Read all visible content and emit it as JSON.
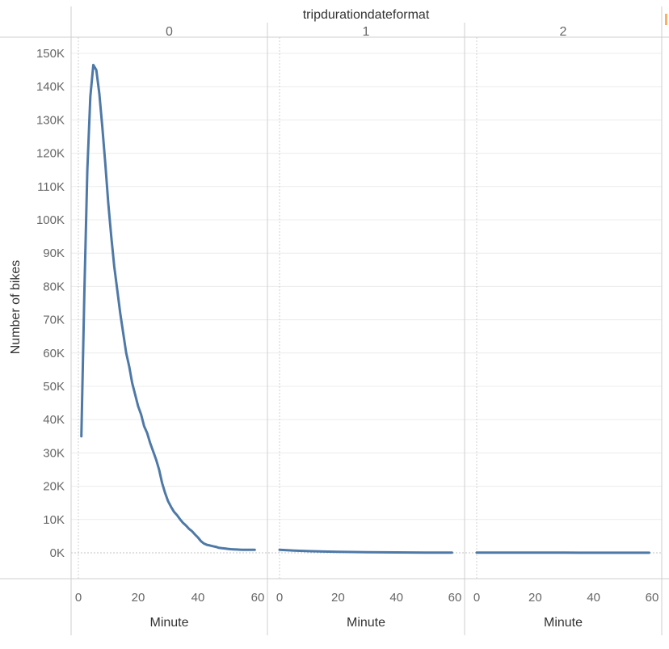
{
  "chart_data": {
    "type": "line",
    "column_header": "tripdurationdateformat",
    "ylabel": "Number of bikes",
    "xlabel": "Minute",
    "ylim": [
      0,
      152000
    ],
    "xlim": [
      0,
      60
    ],
    "y_ticks": [
      0,
      10000,
      20000,
      30000,
      40000,
      50000,
      60000,
      70000,
      80000,
      90000,
      100000,
      110000,
      120000,
      130000,
      140000,
      150000
    ],
    "y_tick_labels": [
      "0K",
      "10K",
      "20K",
      "30K",
      "40K",
      "50K",
      "60K",
      "70K",
      "80K",
      "90K",
      "100K",
      "110K",
      "120K",
      "130K",
      "140K",
      "150K"
    ],
    "x_ticks": [
      0,
      20,
      40,
      60
    ],
    "x_tick_labels": [
      "0",
      "20",
      "40",
      "60"
    ],
    "grid": true,
    "line_color": "#4e79a7",
    "panels": [
      {
        "label": "0",
        "x": [
          1,
          2,
          3,
          4,
          5,
          6,
          7,
          8,
          9,
          10,
          11,
          12,
          13,
          14,
          15,
          16,
          17,
          18,
          19,
          20,
          21,
          22,
          23,
          24,
          25,
          26,
          27,
          28,
          29,
          30,
          31,
          32,
          33,
          34,
          35,
          36,
          37,
          38,
          39,
          40,
          41,
          42,
          43,
          44,
          45,
          46,
          47,
          48,
          49,
          50,
          51,
          52,
          53,
          54,
          55,
          56,
          57,
          58,
          59
        ],
        "y": [
          35000,
          78000,
          115000,
          137000,
          146500,
          145000,
          138000,
          128000,
          117000,
          105000,
          95000,
          86000,
          79000,
          72000,
          66000,
          60000,
          56000,
          51000,
          47500,
          44000,
          41500,
          38000,
          36000,
          33000,
          30500,
          28000,
          25000,
          21000,
          18000,
          15500,
          13800,
          12300,
          11300,
          10100,
          9000,
          8200,
          7200,
          6500,
          5500,
          4600,
          3500,
          2800,
          2400,
          2200,
          2000,
          1800,
          1500,
          1400,
          1300,
          1200,
          1100,
          1050,
          1000,
          950,
          900,
          900,
          900,
          900,
          900
        ],
        "note_x_range": "1-59"
      },
      {
        "label": "1",
        "x": [
          0,
          5,
          10,
          15,
          20,
          25,
          30,
          35,
          40,
          45,
          50,
          55,
          59
        ],
        "y": [
          900,
          650,
          500,
          400,
          320,
          250,
          200,
          150,
          120,
          100,
          80,
          70,
          60
        ]
      },
      {
        "label": "2",
        "x": [
          0,
          5,
          10,
          15,
          20,
          25,
          30,
          35,
          40,
          45,
          50,
          55,
          59
        ],
        "y": [
          80,
          70,
          60,
          55,
          50,
          45,
          40,
          35,
          30,
          30,
          25,
          25,
          20
        ]
      }
    ]
  }
}
